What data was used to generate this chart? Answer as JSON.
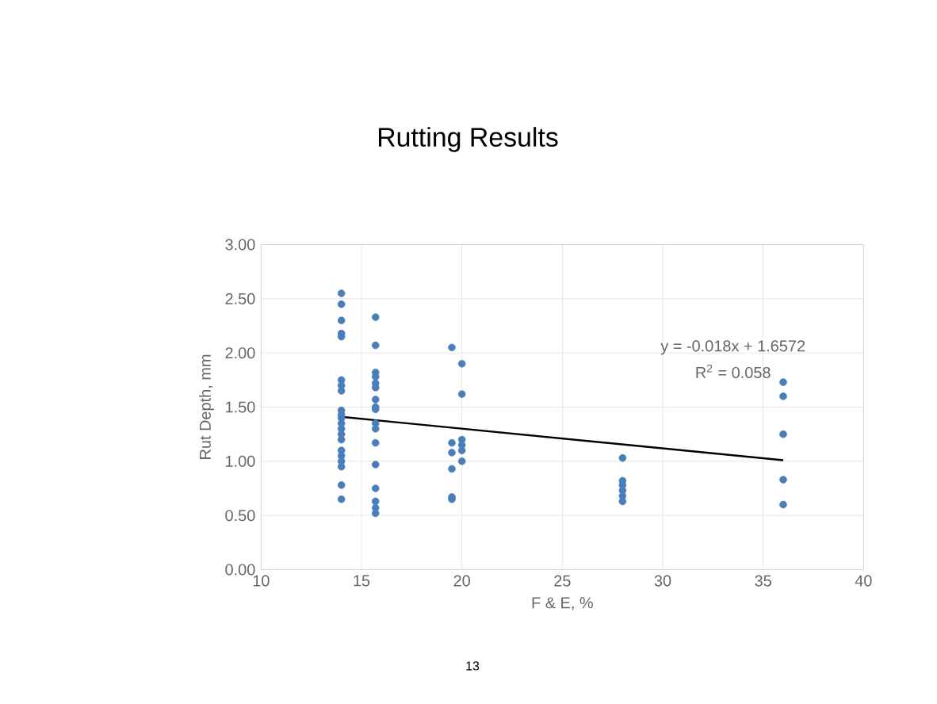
{
  "chart_data": {
    "type": "scatter",
    "title": "Rutting Results",
    "xlabel": "F & E, %",
    "ylabel": "Rut Depth, mm",
    "annotations": [
      "y = -0.018x + 1.6572",
      "R$^{2}$ = 0.058",
      "13"
    ],
    "xlim": [
      10,
      40
    ],
    "xticks": [
      10,
      15,
      20,
      25,
      30,
      35,
      40
    ],
    "ylim": [
      0,
      3
    ],
    "yticks": [
      {
        "value": 0,
        "label": "0.00"
      },
      {
        "value": 0.5,
        "label": "0.50"
      },
      {
        "value": 1,
        "label": "1.00"
      },
      {
        "value": 1.5,
        "label": "1.50"
      },
      {
        "value": 2,
        "label": "2.00"
      },
      {
        "value": 2.5,
        "label": "2.50"
      },
      {
        "value": 3,
        "label": "3.00"
      }
    ],
    "grid": true,
    "series": [
      {
        "marker": "circle",
        "color": "#4a7ebb",
        "x": [
          14,
          14,
          14,
          14,
          14,
          14,
          14,
          14,
          14,
          14,
          14,
          14,
          14,
          14,
          14,
          14,
          14,
          14,
          14,
          14,
          14,
          15.7,
          15.7,
          15.7,
          15.7,
          15.7,
          15.7,
          15.7,
          15.7,
          15.7,
          15.7,
          15.7,
          15.7,
          15.7,
          15.7,
          15.7,
          15.7,
          15.7,
          19.5,
          19.5,
          19.5,
          19.5,
          19.5,
          19.5,
          20,
          20,
          20,
          20,
          20,
          20,
          28,
          28,
          28,
          28,
          28,
          28,
          36,
          36,
          36,
          36,
          36
        ],
        "values": [
          2.55,
          2.45,
          2.3,
          2.18,
          2.15,
          1.75,
          1.7,
          1.65,
          1.47,
          1.43,
          1.4,
          1.35,
          1.3,
          1.25,
          1.2,
          1.1,
          1.05,
          1.0,
          0.95,
          0.78,
          0.65,
          2.33,
          2.07,
          1.82,
          1.78,
          1.72,
          1.68,
          1.57,
          1.5,
          1.48,
          1.35,
          1.3,
          1.17,
          0.97,
          0.75,
          0.63,
          0.57,
          0.52,
          2.05,
          1.17,
          1.08,
          0.93,
          0.67,
          0.65,
          1.9,
          1.62,
          1.2,
          1.15,
          1.1,
          1.0,
          1.03,
          0.82,
          0.78,
          0.73,
          0.68,
          0.63,
          1.73,
          1.6,
          1.25,
          0.83,
          0.6
        ]
      },
      {
        "type": "line",
        "marker": "none",
        "color": "#000000",
        "x": [
          14,
          36
        ],
        "values": [
          1.41,
          1.01
        ]
      }
    ]
  }
}
